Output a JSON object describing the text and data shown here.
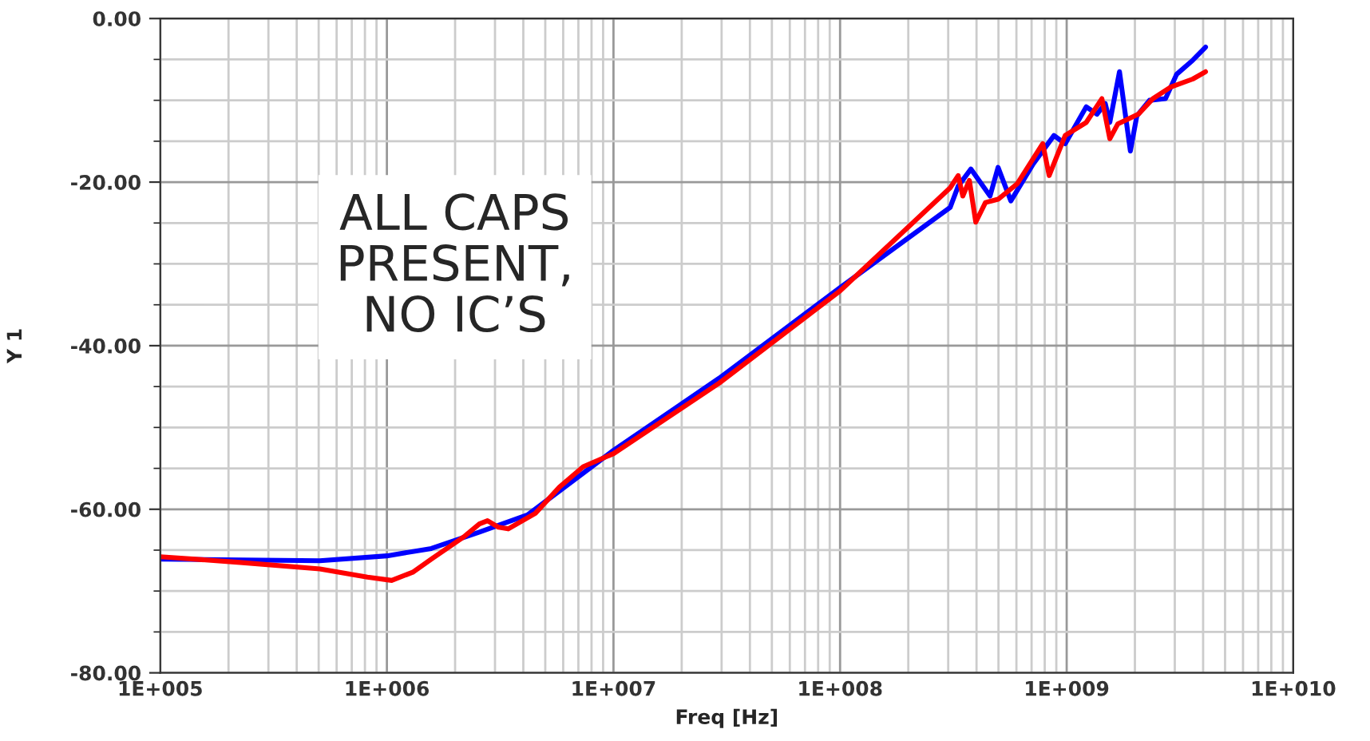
{
  "chart_data": {
    "type": "line",
    "xlabel": "Freq [Hz]",
    "ylabel": "Y 1",
    "log": "x",
    "grid": true,
    "marker": "none",
    "line_style": "solid",
    "xlim": [
      100000,
      10000000000
    ],
    "xticks": [
      {
        "value": 100000,
        "label": "1E+005"
      },
      {
        "value": 1000000,
        "label": "1E+006"
      },
      {
        "value": 10000000,
        "label": "1E+007"
      },
      {
        "value": 100000000,
        "label": "1E+008"
      },
      {
        "value": 1000000000,
        "label": "1E+009"
      },
      {
        "value": 10000000000,
        "label": "1E+010"
      }
    ],
    "ylim": [
      -80,
      0
    ],
    "yticks": [
      {
        "value": -80,
        "label": "-80.00"
      },
      {
        "value": -60,
        "label": "-60.00"
      },
      {
        "value": -40,
        "label": "-40.00"
      },
      {
        "value": -20,
        "label": "-20.00"
      },
      {
        "value": 0,
        "label": "0.00"
      }
    ],
    "annotations": [
      "ALL CAPS\nPRESENT,\nNO IC’S"
    ],
    "series": [
      {
        "color": "#0000ff",
        "x": [
          100000,
          506000,
          1000000,
          1570000,
          2560000,
          4170000,
          10000000,
          29200000,
          100000000,
          306000000,
          332000000,
          378000000,
          459000000,
          498000000,
          567000000,
          711000000,
          879000000,
          985000000,
          1220000000,
          1360000000,
          1480000000,
          1550000000,
          1710000000,
          1910000000,
          2040000000,
          2320000000,
          2730000000,
          3060000000,
          3600000000,
          4100000000
        ],
        "values": [
          -66.1,
          -66.3,
          -65.7,
          -64.8,
          -62.8,
          -60.7,
          -52.8,
          -44,
          -32.9,
          -23.1,
          -20.5,
          -18.4,
          -21.7,
          -18.2,
          -22.3,
          -17.8,
          -14.3,
          -15.3,
          -10.8,
          -11.7,
          -10.4,
          -12.7,
          -6.5,
          -16.2,
          -11.9,
          -10,
          -9.8,
          -6.8,
          -5.1,
          -3.5
        ]
      },
      {
        "color": "#ff0000",
        "x": [
          100000,
          225000,
          506000,
          820000,
          1050000,
          1300000,
          1570000,
          2180000,
          2560000,
          2780000,
          3110000,
          3430000,
          4520000,
          5770000,
          7350000,
          10000000,
          29200000,
          100000000,
          306000000,
          332000000,
          348000000,
          372000000,
          397000000,
          438000000,
          498000000,
          605000000,
          784000000,
          837000000,
          985000000,
          1220000000,
          1430000000,
          1550000000,
          1680000000,
          2070000000,
          2400000000,
          2870000000,
          3600000000,
          4100000000
        ],
        "values": [
          -65.8,
          -66.5,
          -67.3,
          -68.3,
          -68.7,
          -67.7,
          -66.1,
          -63.4,
          -61.8,
          -61.4,
          -62.2,
          -62.4,
          -60.5,
          -57.3,
          -54.8,
          -53.2,
          -44.6,
          -33.3,
          -20.7,
          -19.2,
          -21.7,
          -19.8,
          -24.9,
          -22.5,
          -22.1,
          -20.2,
          -15.3,
          -19.2,
          -14.3,
          -12.7,
          -9.8,
          -14.7,
          -12.9,
          -11.7,
          -9.8,
          -8.4,
          -7.4,
          -6.5
        ]
      }
    ]
  }
}
